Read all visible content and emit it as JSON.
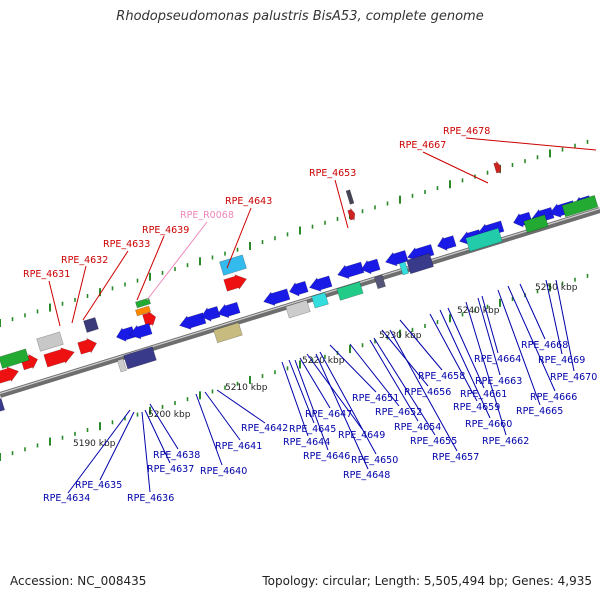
{
  "title": "Rhodopseudomonas palustris BisA53, complete genome",
  "footer": {
    "accession": "Accession: NC_008435",
    "topology": "Topology: circular; Length: 5,505,494 bp; Genes: 4,935"
  },
  "scale_labels": [
    "5190 kbp",
    "5200 kbp",
    "5210 kbp",
    "5220 kbp",
    "5230 kbp",
    "5240 kbp",
    "5250 kbp"
  ],
  "upper_labels": {
    "color": "#cc0000",
    "trna_color": "#ee88bb",
    "names": [
      "RPE_4631",
      "RPE_4632",
      "RPE_4633",
      "RPE_4639",
      "RPE_R0068",
      "RPE_4643",
      "RPE_4653",
      "RPE_4667",
      "RPE_4678"
    ]
  },
  "lower_labels": {
    "color": "#0000aa",
    "names": [
      "RPE_4634",
      "RPE_4635",
      "RPE_4636",
      "RPE_4637",
      "RPE_4638",
      "RPE_4640",
      "RPE_4641",
      "RPE_4642",
      "RPE_4644",
      "RPE_4645",
      "RPE_4646",
      "RPE_4647",
      "RPE_4648",
      "RPE_4649",
      "RPE_4650",
      "RPE_4651",
      "RPE_4652",
      "RPE_4654",
      "RPE_4655",
      "RPE_4656",
      "RPE_4657",
      "RPE_4658",
      "RPE_4659",
      "RPE_4660",
      "RPE_4661",
      "RPE_4662",
      "RPE_4663",
      "RPE_4664",
      "RPE_4665",
      "RPE_4666",
      "RPE_4668",
      "RPE_4669",
      "RPE_4670"
    ]
  },
  "colors": {
    "backbone": "#8a8a8a",
    "forward_gene": "#ee1111",
    "reverse_gene": "#1a1ae6",
    "tick": "#2a8a2a"
  }
}
